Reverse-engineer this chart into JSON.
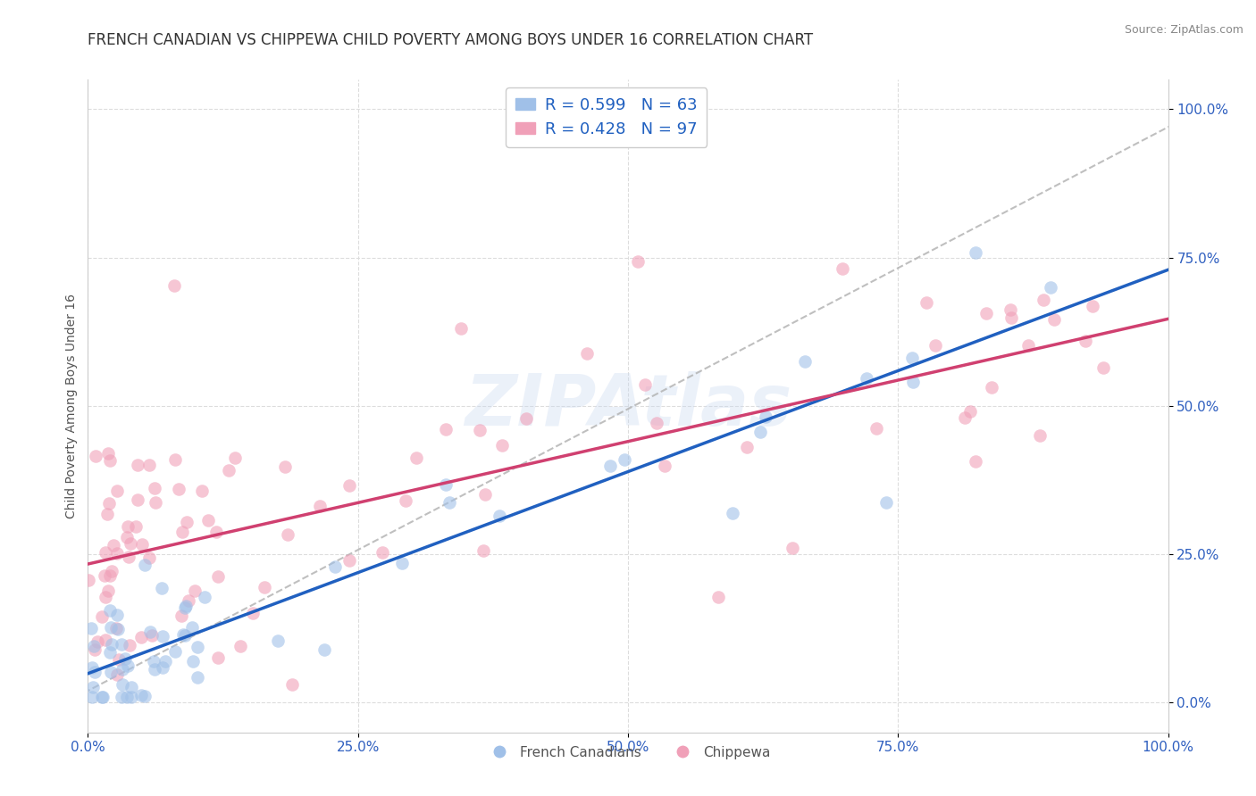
{
  "title": "FRENCH CANADIAN VS CHIPPEWA CHILD POVERTY AMONG BOYS UNDER 16 CORRELATION CHART",
  "source": "Source: ZipAtlas.com",
  "ylabel": "Child Poverty Among Boys Under 16",
  "xlim": [
    0,
    1
  ],
  "ylim": [
    -0.05,
    1.05
  ],
  "x_tick_labels": [
    "0.0%",
    "25.0%",
    "50.0%",
    "75.0%",
    "100.0%"
  ],
  "x_tick_vals": [
    0,
    0.25,
    0.5,
    0.75,
    1.0
  ],
  "y_tick_labels": [
    "0.0%",
    "25.0%",
    "50.0%",
    "75.0%",
    "100.0%"
  ],
  "y_tick_vals": [
    0,
    0.25,
    0.5,
    0.75,
    1.0
  ],
  "french_R": 0.599,
  "french_N": 63,
  "chippewa_R": 0.428,
  "chippewa_N": 97,
  "watermark": "ZIPAtlas",
  "blue_scatter_color": "#a0c0e8",
  "pink_scatter_color": "#f0a0b8",
  "blue_line_color": "#2060c0",
  "pink_line_color": "#d04070",
  "dashed_line_color": "#b0b0b0",
  "title_color": "#333333",
  "axis_tick_color": "#3060c0",
  "ylabel_color": "#555555",
  "background_color": "#ffffff",
  "grid_color": "#dddddd",
  "title_fontsize": 12,
  "ylabel_fontsize": 10,
  "tick_fontsize": 11,
  "legend_fontsize": 13,
  "watermark_color": "#c8d8f0",
  "blue_legend_color": "#a0c0e8",
  "pink_legend_color": "#f0a0b8"
}
